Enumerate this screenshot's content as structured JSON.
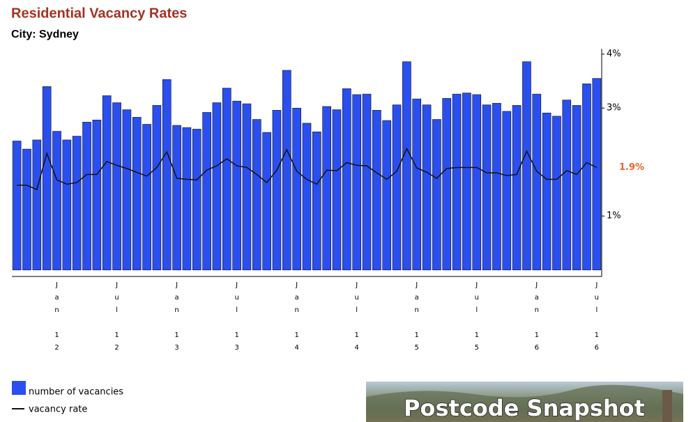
{
  "chart_data": {
    "type": "bar-line",
    "title": "Residential Vacancy Rates",
    "subtitle": "City: Sydney",
    "categories": [
      null,
      null,
      null,
      null,
      "Jan 12",
      null,
      null,
      null,
      null,
      null,
      "Jul 12",
      null,
      null,
      null,
      null,
      null,
      "Jan 13",
      null,
      null,
      null,
      null,
      null,
      "Jul 13",
      null,
      null,
      null,
      null,
      null,
      "Jan 14",
      null,
      null,
      null,
      null,
      null,
      "Jul 14",
      null,
      null,
      null,
      null,
      null,
      "Jan 15",
      null,
      null,
      null,
      null,
      null,
      "Jul 15",
      null,
      null,
      null,
      null,
      null,
      "Jan 16",
      null,
      null,
      null,
      null,
      null,
      "Jul 16"
    ],
    "series": [
      {
        "name": "number of vacancies",
        "type": "bar",
        "color": "#2a4ff0",
        "values": [
          2.39,
          2.24,
          2.41,
          3.4,
          2.57,
          2.41,
          2.48,
          2.74,
          2.78,
          3.23,
          3.1,
          2.97,
          2.83,
          2.7,
          3.05,
          3.53,
          2.68,
          2.64,
          2.61,
          2.92,
          3.1,
          3.37,
          3.13,
          3.08,
          2.79,
          2.55,
          2.96,
          3.7,
          3.0,
          2.72,
          2.56,
          3.03,
          2.97,
          3.36,
          3.25,
          3.26,
          2.96,
          2.77,
          3.06,
          3.86,
          3.17,
          3.06,
          2.79,
          3.18,
          3.26,
          3.28,
          3.25,
          3.06,
          3.09,
          2.94,
          3.05,
          3.86,
          3.26,
          2.91,
          2.85,
          3.15,
          3.05,
          3.45,
          3.55
        ]
      },
      {
        "name": "vacancy rate",
        "type": "line",
        "color": "#111111",
        "label_color": "#e8642c",
        "values": [
          1.57,
          1.57,
          1.49,
          2.16,
          1.67,
          1.59,
          1.62,
          1.77,
          1.77,
          2.01,
          1.94,
          1.88,
          1.81,
          1.74,
          1.9,
          2.19,
          1.7,
          1.68,
          1.67,
          1.85,
          1.93,
          2.06,
          1.93,
          1.9,
          1.77,
          1.62,
          1.85,
          2.23,
          1.83,
          1.68,
          1.59,
          1.85,
          1.84,
          1.99,
          1.94,
          1.93,
          1.8,
          1.68,
          1.83,
          2.25,
          1.89,
          1.81,
          1.7,
          1.88,
          1.9,
          1.9,
          1.9,
          1.8,
          1.8,
          1.75,
          1.77,
          2.2,
          1.83,
          1.68,
          1.68,
          1.84,
          1.77,
          1.99,
          1.9
        ],
        "value_labels": [
          null,
          null,
          null,
          null,
          null,
          null,
          null,
          null,
          null,
          null,
          null,
          null,
          null,
          null,
          null,
          null,
          null,
          null,
          null,
          null,
          null,
          null,
          null,
          null,
          null,
          null,
          null,
          null,
          null,
          null,
          null,
          null,
          null,
          null,
          null,
          null,
          null,
          null,
          null,
          null,
          null,
          null,
          null,
          null,
          null,
          null,
          null,
          null,
          null,
          null,
          null,
          null,
          null,
          null,
          null,
          null,
          null,
          null,
          "1.9%"
        ]
      }
    ],
    "ylim": [
      -0.12,
      4.1
    ],
    "yticks": [
      {
        "value": 1,
        "label": "1%"
      },
      {
        "value": 3,
        "label": "3%"
      },
      {
        "value": 4,
        "label": "4%"
      }
    ],
    "axis_side": "right"
  },
  "banner": "Postcode Snapshot"
}
